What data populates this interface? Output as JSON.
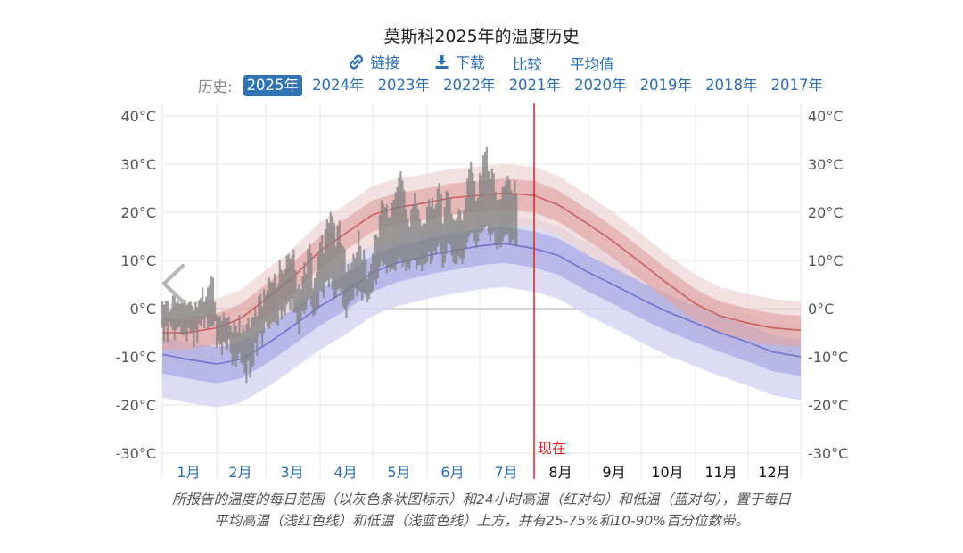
{
  "page": {
    "title": "莫斯科2025年的温度历史",
    "toolbar": {
      "link_label": "链接",
      "download_label": "下载",
      "compare_label": "比较",
      "average_label": "平均值"
    },
    "history_label": "历史:",
    "years": [
      "2025年",
      "2024年",
      "2023年",
      "2022年",
      "2021年",
      "2020年",
      "2019年",
      "2018年",
      "2017年"
    ],
    "selected_year": "2025年",
    "caption_line1": "所报告的温度的每日范围（以灰色条状图标示）和24小时高温（红对勾）和低温（蓝对勾），置于每日",
    "caption_line2": "平均高温（浅红色线）和低温（浅蓝色线）上方，并有25-75%和10-90%百分位数带。",
    "icons": {
      "link": "link-icon",
      "download": "download-icon",
      "prev": "chevron-left-icon"
    }
  },
  "chart_data": {
    "type": "area",
    "title": "莫斯科2025年的温度历史",
    "ylim": [
      -30,
      40
    ],
    "y_ticks": [
      40,
      30,
      20,
      10,
      0,
      -10,
      -20,
      -30
    ],
    "y_tick_labels": [
      "40°C",
      "30°C",
      "20°C",
      "10°C",
      "0°C",
      "-10°C",
      "-20°C",
      "-30°C"
    ],
    "months": [
      "1月",
      "2月",
      "3月",
      "4月",
      "5月",
      "6月",
      "7月",
      "8月",
      "9月",
      "10月",
      "11月",
      "12月"
    ],
    "now_day": 213,
    "now_label": "现在",
    "colors": {
      "avg_high": "#c8605f",
      "avg_low": "#6f73cc",
      "high_band_inner": "#dfa6a6",
      "high_band_outer": "#eed3d3",
      "low_band_inner": "#aeaee6",
      "low_band_outer": "#d6d6f2",
      "daily_bar": "#808080",
      "now_line": "#e02020",
      "month_past": "#2a6fb4",
      "month_future": "#111111"
    },
    "avg_high": {
      "days": [
        1,
        15,
        32,
        46,
        60,
        74,
        91,
        105,
        121,
        135,
        152,
        166,
        182,
        196,
        213,
        227,
        244,
        258,
        274,
        288,
        305,
        319,
        335,
        349,
        365
      ],
      "values": [
        -5,
        -5,
        -4,
        -2,
        2,
        6,
        12,
        15.5,
        19.5,
        21,
        22,
        23,
        23.5,
        24,
        23.5,
        21.5,
        17.5,
        14,
        9.5,
        5.5,
        1,
        -1.5,
        -3,
        -4,
        -4.5
      ]
    },
    "avg_low": {
      "days": [
        1,
        15,
        32,
        46,
        60,
        74,
        91,
        105,
        121,
        135,
        152,
        166,
        182,
        196,
        213,
        227,
        244,
        258,
        274,
        288,
        305,
        319,
        335,
        349,
        365
      ],
      "values": [
        -9.5,
        -10.5,
        -11.5,
        -10.5,
        -7.5,
        -4,
        0.5,
        3.5,
        7.5,
        9.5,
        11,
        12,
        13,
        13.5,
        12.5,
        11,
        7.5,
        5,
        2,
        -0.5,
        -3,
        -5,
        -7,
        -9,
        -10
      ]
    },
    "band_offsets": {
      "high_inner": [
        -3.5,
        3
      ],
      "high_outer": [
        -6.5,
        6
      ],
      "low_inner": [
        -4,
        3.5
      ],
      "low_outer": [
        -9,
        6
      ]
    },
    "daily_bars": [
      [
        -4,
        1.5
      ],
      [
        -6.8,
        0.8
      ],
      [
        -3.7,
        1.6
      ],
      [
        -7,
        1.6
      ],
      [
        -2.7,
        -0.7
      ],
      [
        -3.8,
        -0.1
      ],
      [
        -4.4,
        2.7
      ],
      [
        -6.5,
        2.7
      ],
      [
        -4.4,
        1.2
      ],
      [
        -4,
        1.7
      ],
      [
        -3.8,
        1
      ],
      [
        -5.3,
        2.1
      ],
      [
        -5.6,
        1.7
      ],
      [
        -5.2,
        1.9
      ],
      [
        -6.8,
        0.7
      ],
      [
        -4,
        1.2
      ],
      [
        -4.7,
        1.5
      ],
      [
        -5.1,
        0.6
      ],
      [
        -8,
        -0.5
      ],
      [
        -4.4,
        1.4
      ],
      [
        -7.2,
        0.3
      ],
      [
        -3.2,
        1.8
      ],
      [
        -3.5,
        2.2
      ],
      [
        -2.2,
        4.3
      ],
      [
        -4.1,
        1.4
      ],
      [
        -1.7,
        2.5
      ],
      [
        -4.3,
        4.4
      ],
      [
        -3.9,
        4.9
      ],
      [
        -3.7,
        6.7
      ],
      [
        -3.6,
        6.4
      ],
      [
        -2.6,
        1.3
      ],
      [
        -8.2,
        -1.3
      ],
      [
        -6.7,
        -1.7
      ],
      [
        -7.5,
        -1.4
      ],
      [
        -9.6,
        -2.6
      ],
      [
        -6.8,
        -0.8
      ],
      [
        -7.4,
        -2.1
      ],
      [
        -8.5,
        -1.9
      ],
      [
        -6.2,
        -1.6
      ],
      [
        -9.3,
        -3.5
      ],
      [
        -11.8,
        -4.8
      ],
      [
        -10.4,
        -2.5
      ],
      [
        -12.1,
        -3.5
      ],
      [
        -10.7,
        -4.9
      ],
      [
        -9.2,
        -1.3
      ],
      [
        -11.3,
        -5.1
      ],
      [
        -11.7,
        -3.5
      ],
      [
        -13.4,
        -4.7
      ],
      [
        -15.4,
        -3.2
      ],
      [
        -10.8,
        -1.9
      ],
      [
        -14.3,
        -4
      ],
      [
        -12.2,
        -1.9
      ],
      [
        -11.9,
        -1.7
      ],
      [
        -7.2,
        0
      ],
      [
        -9.8,
        -1.6
      ],
      [
        -5.8,
        2.5
      ],
      [
        -5,
        3
      ],
      [
        -7.7,
        0.4
      ],
      [
        -5.1,
        4
      ],
      [
        -2.8,
        2.8
      ],
      [
        -3.7,
        3.8
      ],
      [
        -4.2,
        6.4
      ],
      [
        -3.3,
        5.4
      ],
      [
        -2.8,
        5.5
      ],
      [
        -2.8,
        7.2
      ],
      [
        -3.1,
        4.3
      ],
      [
        -3.5,
        5.1
      ],
      [
        -0.4,
        10
      ],
      [
        -2.3,
        8
      ],
      [
        -0.6,
        7.2
      ],
      [
        -1.3,
        8.1
      ],
      [
        0.8,
        10.9
      ],
      [
        1.4,
        11.3
      ],
      [
        -0.3,
        10.4
      ],
      [
        2,
        11
      ],
      [
        -0.9,
        12.3
      ],
      [
        -0.8,
        7.9
      ],
      [
        -3.1,
        4.1
      ],
      [
        -5.3,
        5.1
      ],
      [
        -2.2,
        4.1
      ],
      [
        -0.5,
        6.6
      ],
      [
        -1.1,
        9.7
      ],
      [
        -0.2,
        7.3
      ],
      [
        1.8,
        12.3
      ],
      [
        2.1,
        13.4
      ],
      [
        0.5,
        11.5
      ],
      [
        -1.6,
        4.2
      ],
      [
        -1.2,
        6.3
      ],
      [
        0.1,
        7.6
      ],
      [
        0.3,
        11.8
      ],
      [
        3.8,
        13.8
      ],
      [
        3.5,
        15.2
      ],
      [
        2.2,
        11.4
      ],
      [
        5.5,
        16.5
      ],
      [
        5.8,
        18.5
      ],
      [
        4.4,
        17.8
      ],
      [
        6.2,
        20.1
      ],
      [
        4,
        19.2
      ],
      [
        1.9,
        17.8
      ],
      [
        2.2,
        12.9
      ],
      [
        3.9,
        17.2
      ],
      [
        4.2,
        18.3
      ],
      [
        3.5,
        13.6
      ],
      [
        0.4,
        13
      ],
      [
        -0.1,
        12.4
      ],
      [
        -1.9,
        7.6
      ],
      [
        0.8,
        9.2
      ],
      [
        1.6,
        8.1
      ],
      [
        1.7,
        9.5
      ],
      [
        2,
        11.4
      ],
      [
        4.2,
        10.5
      ],
      [
        2.6,
        11.8
      ],
      [
        3.7,
        16.2
      ],
      [
        3.5,
        13
      ],
      [
        1.7,
        10.2
      ],
      [
        3.2,
        12.3
      ],
      [
        3,
        10.4
      ],
      [
        1.3,
        6.2
      ],
      [
        2,
        7.7
      ],
      [
        3.1,
        9.3
      ],
      [
        3.6,
        11.4
      ],
      [
        5.9,
        15.3
      ],
      [
        5.1,
        15.5
      ],
      [
        6.3,
        14.8
      ],
      [
        8.7,
        19.5
      ],
      [
        9.8,
        22.5
      ],
      [
        8.8,
        21.7
      ],
      [
        9.3,
        21.1
      ],
      [
        7.3,
        21.6
      ],
      [
        8.5,
        18.9
      ],
      [
        7.7,
        19.1
      ],
      [
        8.2,
        21.9
      ],
      [
        8.2,
        22.6
      ],
      [
        7.8,
        24.2
      ],
      [
        9.5,
        25.2
      ],
      [
        11,
        27.2
      ],
      [
        10.1,
        28.5
      ],
      [
        8.7,
        26.6
      ],
      [
        9.4,
        24.6
      ],
      [
        7.8,
        20.6
      ],
      [
        8.6,
        18.7
      ],
      [
        8.1,
        17
      ],
      [
        9.9,
        20.7
      ],
      [
        10.3,
        21.6
      ],
      [
        10,
        24.1
      ],
      [
        8.1,
        21.8
      ],
      [
        9,
        20.6
      ],
      [
        9.1,
        18.6
      ],
      [
        7.8,
        17.3
      ],
      [
        9.2,
        17.7
      ],
      [
        9.2,
        17.7
      ],
      [
        9.6,
        21.1
      ],
      [
        11.9,
        22.7
      ],
      [
        9.2,
        21.2
      ],
      [
        10.2,
        23.1
      ],
      [
        12,
        20.7
      ],
      [
        11.3,
        21.6
      ],
      [
        12.8,
        24.9
      ],
      [
        13.5,
        26.1
      ],
      [
        11.2,
        23.8
      ],
      [
        8.4,
        17.7
      ],
      [
        9.5,
        21.1
      ],
      [
        11.3,
        24.5
      ],
      [
        13.5,
        24.1
      ],
      [
        13.2,
        23
      ],
      [
        11,
        19.7
      ],
      [
        9.5,
        18.5
      ],
      [
        9.2,
        18.3
      ],
      [
        9.3,
        18.8
      ],
      [
        10.9,
        20.8
      ],
      [
        10.4,
        20.3
      ],
      [
        9.3,
        18.3
      ],
      [
        10.4,
        20.4
      ],
      [
        12.4,
        23
      ],
      [
        13.8,
        27
      ],
      [
        14.9,
        28.9
      ],
      [
        15.6,
        30.4
      ],
      [
        15.8,
        28.2
      ],
      [
        14.1,
        26.5
      ],
      [
        12.5,
        22.4
      ],
      [
        13.9,
        23.1
      ],
      [
        15.8,
        28.1
      ],
      [
        15.7,
        27.7
      ],
      [
        16.2,
        31.8
      ],
      [
        16.8,
        32.6
      ],
      [
        17.2,
        33.6
      ],
      [
        15.4,
        28.5
      ],
      [
        14,
        26.9
      ],
      [
        15.5,
        29.1
      ],
      [
        15.9,
        28.1
      ],
      [
        13.1,
        24.3
      ],
      [
        12.3,
        22.6
      ],
      [
        13.4,
        22.6
      ],
      [
        12.7,
        22.8
      ],
      [
        13.9,
        25.2
      ],
      [
        14.9,
        25.4
      ],
      [
        15.5,
        26.4
      ],
      [
        15.4,
        27.6
      ],
      [
        13.7,
        26.7
      ],
      [
        13.6,
        24.6
      ],
      [
        14.3,
        23.9
      ],
      [
        13.2,
        26.6
      ],
      [
        12.8,
        23.9
      ]
    ]
  }
}
